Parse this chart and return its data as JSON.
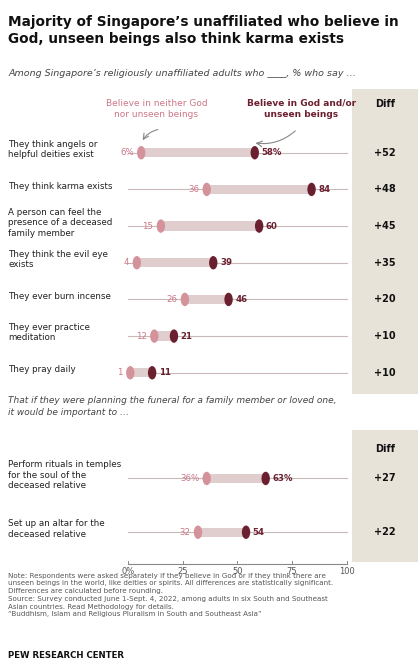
{
  "title": "Majority of Singapore’s unaffiliated who believe in\nGod, unseen beings also think karma exists",
  "subtitle": "Among Singapore’s religiously unaffiliated adults who ____, % who say …",
  "col1_label": "Believe in neither God\nnor unseen beings",
  "col2_label": "Believe in God and/or\nunseen beings",
  "diff_label": "Diff",
  "section1_rows": [
    {
      "label": "They think angels or\nhelpful deities exist",
      "v1": 6,
      "v2": 58,
      "diff": "+52",
      "pct1": true,
      "pct2": true
    },
    {
      "label": "They think karma exists",
      "v1": 36,
      "v2": 84,
      "diff": "+48",
      "pct1": false,
      "pct2": false
    },
    {
      "label": "A person can feel the\npresence of a deceased\nfamily member",
      "v1": 15,
      "v2": 60,
      "diff": "+45",
      "pct1": false,
      "pct2": false
    },
    {
      "label": "They think the evil eye\nexists",
      "v1": 4,
      "v2": 39,
      "diff": "+35",
      "pct1": false,
      "pct2": false
    },
    {
      "label": "They ever burn incense",
      "v1": 26,
      "v2": 46,
      "diff": "+20",
      "pct1": false,
      "pct2": false
    },
    {
      "label": "They ever practice\nmeditation",
      "v1": 12,
      "v2": 21,
      "diff": "+10",
      "pct1": false,
      "pct2": false
    },
    {
      "label": "They pray daily",
      "v1": 1,
      "v2": 11,
      "diff": "+10",
      "pct1": false,
      "pct2": false
    }
  ],
  "section2_intro": "That if they were planning the funeral for a family member or loved one,\nit would be important to …",
  "section2_rows": [
    {
      "label": "Perform rituals in temples\nfor the soul of the\ndeceased relative",
      "v1": 36,
      "v2": 63,
      "diff": "+27",
      "pct1": true,
      "pct2": true
    },
    {
      "label": "Set up an altar for the\ndeceased relative",
      "v1": 32,
      "v2": 54,
      "diff": "+22",
      "pct1": false,
      "pct2": false
    }
  ],
  "note_text": "Note: Respondents were asked separately if they believe in God or if they think there are\nunseen beings in the world, like deities or spirits. All differences are statistically significant.\nDifferences are calculated before rounding.\nSource: Survey conducted June 1-Sept. 4, 2022, among adults in six South and Southeast\nAsian countries. Read Methodology for details.\n“Buddhism, Islam and Religious Pluralism in South and Southeast Asia”",
  "pew_label": "PEW RESEARCH CENTER",
  "color_light_dot": "#d4939b",
  "color_dark_dot": "#6b2030",
  "color_band": "#e0cece",
  "color_hline": "#c8b8b8",
  "color_diff_bg": "#e8e3d8",
  "color_bg": "#ffffff",
  "color_label1": "#cc7788",
  "color_label2": "#6b2030",
  "color_row_text": "#222222",
  "color_note": "#555555",
  "xmin": 0,
  "xmax": 100,
  "xticks": [
    0,
    25,
    50,
    75,
    100
  ],
  "xticklabels": [
    "0%",
    "25",
    "50",
    "75",
    "100"
  ]
}
